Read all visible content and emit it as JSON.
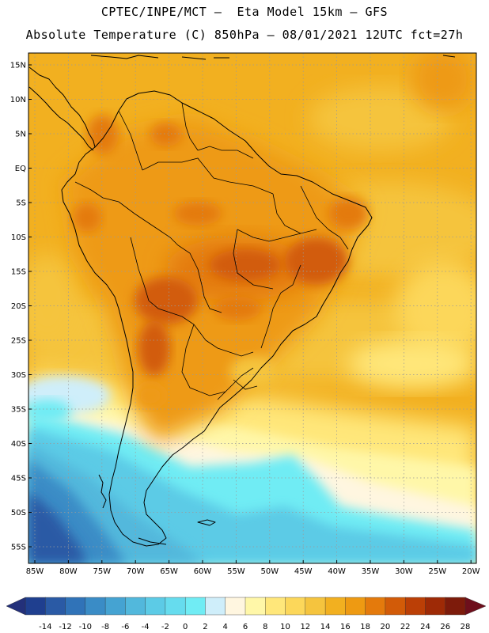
{
  "header": {
    "line1": "CPTEC/INPE/MCT —  Eta Model 15km — GFS",
    "line2": "Absolute Temperature (C) 850hPa — 08/01/2021 12UTC fct=27h"
  },
  "axes": {
    "lat_labels": [
      "15N",
      "10N",
      "5N",
      "EQ",
      "5S",
      "10S",
      "15S",
      "20S",
      "25S",
      "30S",
      "35S",
      "40S",
      "45S",
      "50S",
      "55S"
    ],
    "lon_labels": [
      "85W",
      "80W",
      "75W",
      "70W",
      "65W",
      "60W",
      "55W",
      "50W",
      "45W",
      "40W",
      "35W",
      "30W",
      "25W",
      "20W"
    ]
  },
  "colorbar": {
    "labels": [
      "-14",
      "-12",
      "-10",
      "-8",
      "-6",
      "-4",
      "-2",
      "0",
      "2",
      "4",
      "6",
      "8",
      "10",
      "12",
      "14",
      "16",
      "18",
      "20",
      "22",
      "24",
      "26",
      "28"
    ],
    "colors": [
      "#1f3f8f",
      "#2a5aa5",
      "#3073b8",
      "#3a8cc6",
      "#45a3d2",
      "#52b8dc",
      "#5ccbe6",
      "#66dcee",
      "#70ecf4",
      "#cfeefa",
      "#fff6e0",
      "#fff7a8",
      "#ffe77a",
      "#fcd75a",
      "#f5c43e",
      "#f2b020",
      "#ee9a12",
      "#e47a0c",
      "#d25b08",
      "#bb3f06",
      "#9e2a06",
      "#7d1b0b"
    ],
    "end_low": "#23307a",
    "end_high": "#6e0f1c"
  }
}
